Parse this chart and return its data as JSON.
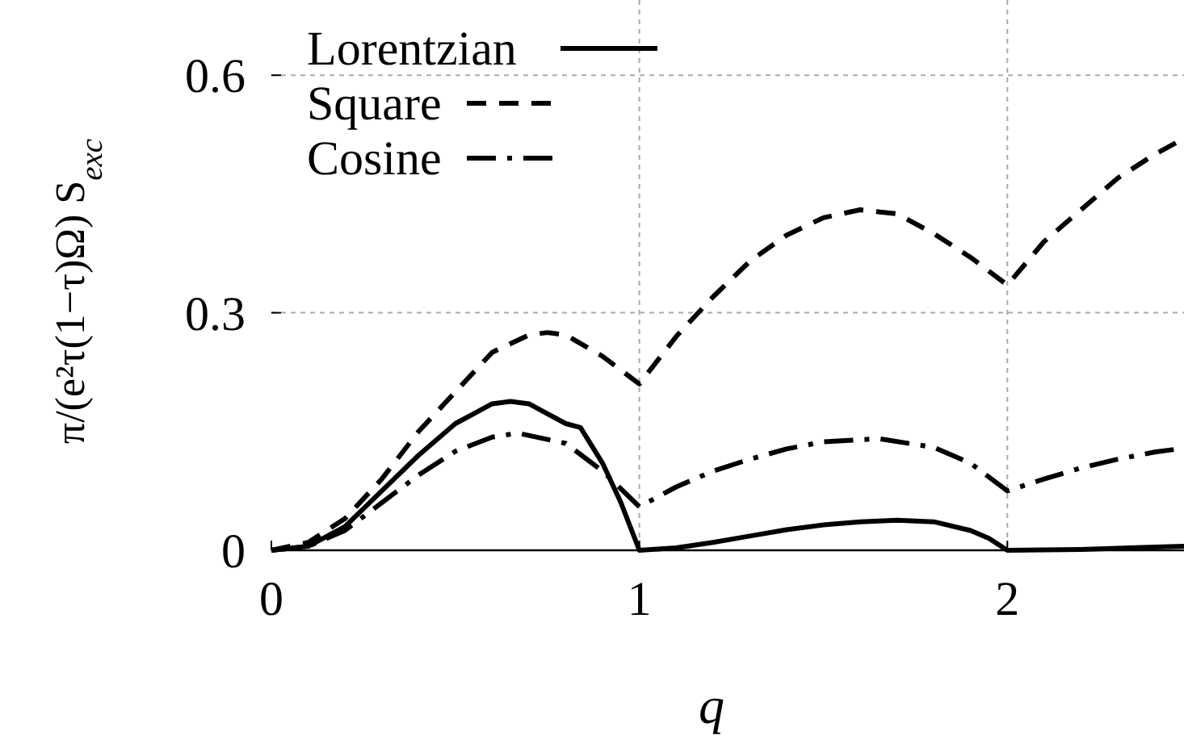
{
  "chart_data": {
    "type": "line",
    "xlabel": "q",
    "ylabel": "π/(e²τ(1−τ)Ω) S$_{exc}$",
    "xlim": [
      0,
      2.48
    ],
    "ylim": [
      0,
      0.695
    ],
    "xticks": [
      0,
      1,
      2
    ],
    "yticks": [
      0,
      0.3,
      0.6
    ],
    "grid": true,
    "legend": "top left",
    "marker": "none",
    "series": [
      {
        "name": "Lorentzian",
        "color": "#000000",
        "line_style": "solid",
        "x": [
          0,
          0.1,
          0.2,
          0.3,
          0.4,
          0.5,
          0.6,
          0.65,
          0.7,
          0.8,
          0.84,
          0.9,
          0.95,
          1.0,
          1.1,
          1.2,
          1.3,
          1.4,
          1.5,
          1.6,
          1.7,
          1.8,
          1.9,
          1.95,
          2.0,
          2.2,
          2.4,
          2.48
        ],
        "values": [
          0,
          0.005,
          0.03,
          0.075,
          0.12,
          0.16,
          0.185,
          0.188,
          0.185,
          0.16,
          0.155,
          0.11,
          0.06,
          0,
          0.003,
          0.01,
          0.018,
          0.026,
          0.032,
          0.036,
          0.038,
          0.036,
          0.025,
          0.015,
          0,
          0.001,
          0.004,
          0.005
        ]
      },
      {
        "name": "Square",
        "color": "#000000",
        "line_style": "dashed",
        "x": [
          0,
          0.1,
          0.2,
          0.3,
          0.4,
          0.5,
          0.6,
          0.7,
          0.75,
          0.8,
          0.9,
          1.0,
          1.1,
          1.2,
          1.3,
          1.4,
          1.5,
          1.6,
          1.7,
          1.8,
          1.9,
          2.0,
          2.1,
          2.2,
          2.3,
          2.4,
          2.48
        ],
        "values": [
          0,
          0.01,
          0.04,
          0.09,
          0.15,
          0.2,
          0.25,
          0.272,
          0.275,
          0.272,
          0.245,
          0.21,
          0.27,
          0.32,
          0.365,
          0.398,
          0.42,
          0.43,
          0.425,
          0.4,
          0.37,
          0.335,
          0.39,
          0.43,
          0.47,
          0.5,
          0.52
        ]
      },
      {
        "name": "Cosine",
        "color": "#000000",
        "line_style": "dashdot",
        "x": [
          0,
          0.1,
          0.2,
          0.3,
          0.4,
          0.5,
          0.6,
          0.67,
          0.8,
          0.9,
          1.0,
          1.1,
          1.2,
          1.3,
          1.4,
          1.5,
          1.65,
          1.8,
          1.9,
          2.0,
          2.1,
          2.2,
          2.3,
          2.4,
          2.48
        ],
        "values": [
          0,
          0.005,
          0.025,
          0.06,
          0.095,
          0.125,
          0.143,
          0.148,
          0.135,
          0.1,
          0.055,
          0.08,
          0.1,
          0.115,
          0.128,
          0.137,
          0.141,
          0.13,
          0.11,
          0.075,
          0.09,
          0.104,
          0.115,
          0.124,
          0.129
        ]
      }
    ]
  }
}
